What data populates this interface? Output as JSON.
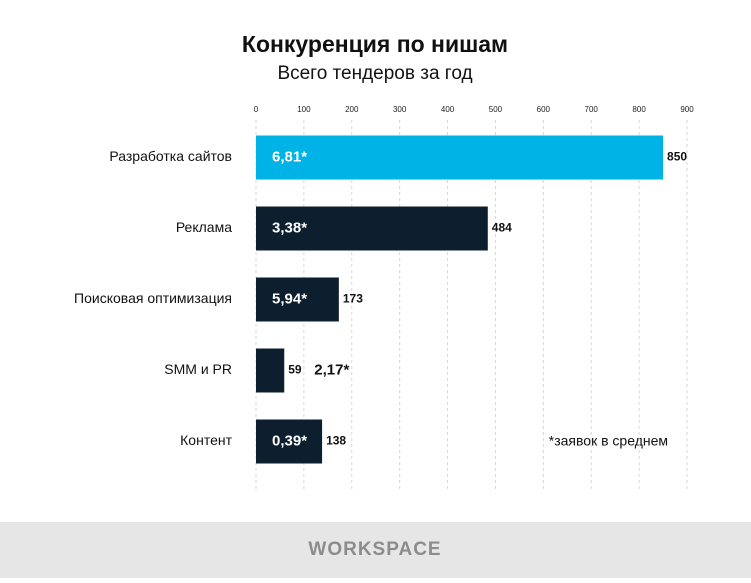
{
  "chart_data": {
    "type": "barh",
    "title": "Конкуренция по нишам",
    "subtitle": "Всего тендеров за год",
    "categories": [
      "Разработка сайтов",
      "Реклама",
      "Поисковая оптимизация",
      "SMM и PR",
      "Контент"
    ],
    "values": [
      850,
      484,
      173,
      59,
      138
    ],
    "colors": [
      "#00b3e6",
      "#0d1e2e",
      "#0d1e2e",
      "#0d1e2e",
      "#0d1e2e"
    ],
    "bid_values": [
      6.81,
      3.38,
      5.94,
      2.17,
      0.39
    ],
    "bid_labels": [
      "6,81*",
      "3,38*",
      "5,94*",
      "2,17*",
      "0,39*"
    ],
    "note": "*заявок в среднем",
    "xlim": [
      0,
      900
    ],
    "xticks": [
      0,
      100,
      200,
      300,
      400,
      500,
      600,
      700,
      800,
      900
    ],
    "grid": true
  },
  "footer": {
    "brand": "WORKSPACE"
  }
}
